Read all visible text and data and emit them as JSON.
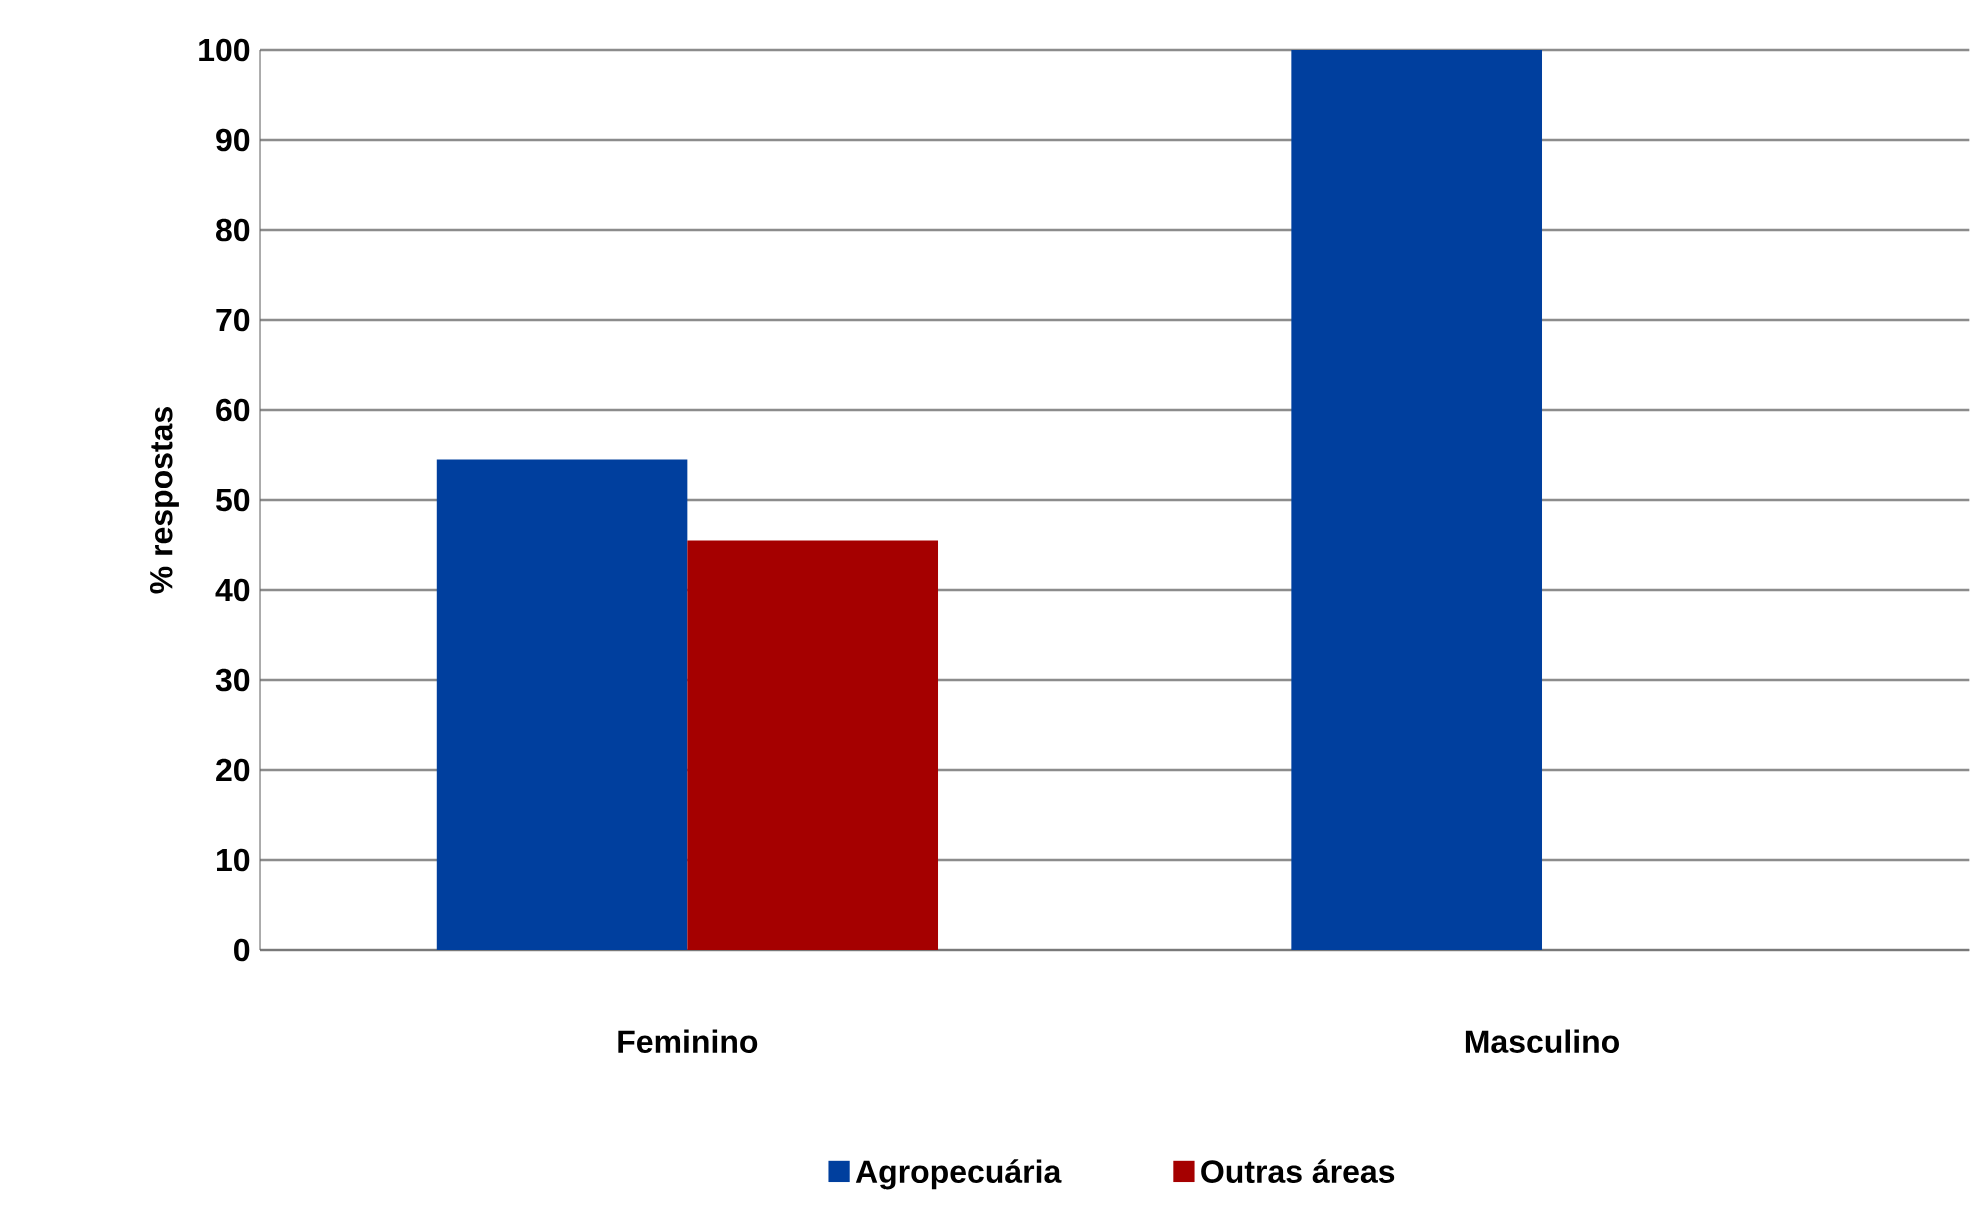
{
  "chart_data": {
    "type": "bar",
    "ylabel": "% respostas",
    "categories": [
      "Feminino",
      "Masculino"
    ],
    "series": [
      {
        "name": "Agropecuária",
        "color": "#003f9e",
        "values": [
          54.5,
          100
        ]
      },
      {
        "name": "Outras áreas",
        "color": "#a50000",
        "values": [
          45.5,
          null
        ]
      }
    ],
    "ylim": [
      0,
      100
    ],
    "yticks": [
      0,
      10,
      20,
      30,
      40,
      50,
      60,
      70,
      80,
      90,
      100
    ],
    "grid": "y",
    "legend": "bottom"
  }
}
